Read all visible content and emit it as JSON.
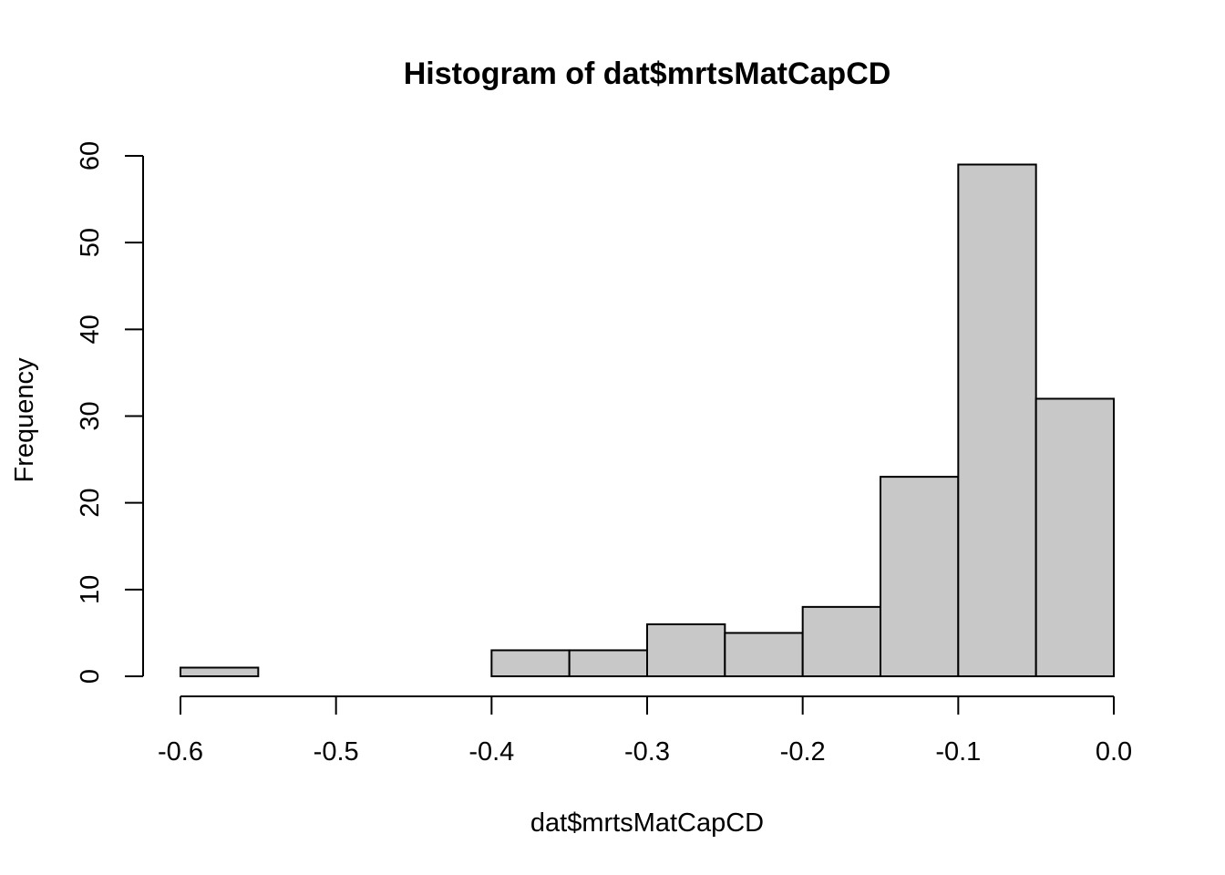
{
  "chart_data": {
    "type": "bar",
    "subtype": "histogram",
    "title": "Histogram of dat$mrtsMatCapCD",
    "xlabel": "dat$mrtsMatCapCD",
    "ylabel": "Frequency",
    "bins": [
      {
        "x0": -0.6,
        "x1": -0.55,
        "count": 1
      },
      {
        "x0": -0.55,
        "x1": -0.5,
        "count": 0
      },
      {
        "x0": -0.5,
        "x1": -0.45,
        "count": 0
      },
      {
        "x0": -0.45,
        "x1": -0.4,
        "count": 0
      },
      {
        "x0": -0.4,
        "x1": -0.35,
        "count": 3
      },
      {
        "x0": -0.35,
        "x1": -0.3,
        "count": 3
      },
      {
        "x0": -0.3,
        "x1": -0.25,
        "count": 6
      },
      {
        "x0": -0.25,
        "x1": -0.2,
        "count": 5
      },
      {
        "x0": -0.2,
        "x1": -0.15,
        "count": 8
      },
      {
        "x0": -0.15,
        "x1": -0.1,
        "count": 23
      },
      {
        "x0": -0.1,
        "x1": -0.05,
        "count": 59
      },
      {
        "x0": -0.05,
        "x1": 0.0,
        "count": 32
      }
    ],
    "xlim": [
      -0.6,
      0.0
    ],
    "ylim": [
      0,
      60
    ],
    "x_ticks": [
      -0.6,
      -0.5,
      -0.4,
      -0.3,
      -0.2,
      -0.1,
      0.0
    ],
    "x_tick_labels": [
      "-0.6",
      "-0.5",
      "-0.4",
      "-0.3",
      "-0.2",
      "-0.1",
      "0.0"
    ],
    "y_ticks": [
      0,
      10,
      20,
      30,
      40,
      50,
      60
    ],
    "y_tick_labels": [
      "0",
      "10",
      "20",
      "30",
      "40",
      "50",
      "60"
    ],
    "bar_color": "#c8c8c8",
    "grid": false,
    "legend": "none"
  }
}
